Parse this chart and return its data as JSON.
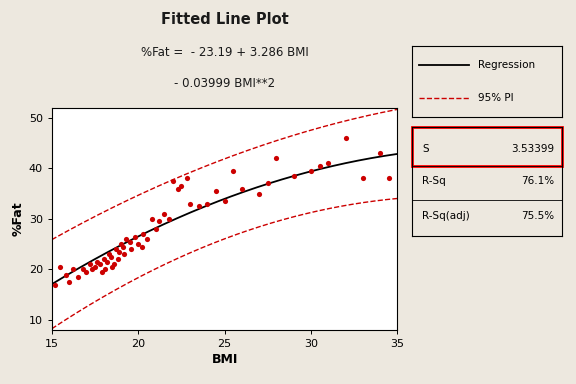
{
  "title": "Fitted Line Plot",
  "subtitle1": "%Fat =  - 23.19 + 3.286 BMI",
  "subtitle2": "- 0.03999 BMI**2",
  "xlabel": "BMI",
  "ylabel": "%Fat",
  "bg_color": "#ede8df",
  "plot_bg_color": "#ffffff",
  "xlim": [
    15,
    35
  ],
  "ylim": [
    8,
    52
  ],
  "xticks": [
    15,
    20,
    25,
    30,
    35
  ],
  "yticks": [
    10,
    20,
    30,
    40,
    50
  ],
  "scatter_color": "#cc0000",
  "regression_color": "#000000",
  "pi_color": "#cc0000",
  "legend_labels": [
    "Regression",
    "95% PI"
  ],
  "stats_labels": [
    "S",
    "R-Sq",
    "R-Sq(adj)"
  ],
  "stats_values": [
    "3.53399",
    "76.1%",
    "75.5%"
  ],
  "coeffs": [
    -23.19,
    3.286,
    -0.03999
  ],
  "s_value": 3.53399,
  "scatter_x": [
    15.2,
    15.5,
    15.8,
    16.0,
    16.2,
    16.5,
    16.8,
    17.0,
    17.2,
    17.3,
    17.5,
    17.6,
    17.8,
    17.9,
    18.0,
    18.1,
    18.2,
    18.3,
    18.4,
    18.5,
    18.6,
    18.7,
    18.8,
    18.9,
    19.0,
    19.1,
    19.2,
    19.3,
    19.5,
    19.6,
    19.8,
    20.0,
    20.2,
    20.3,
    20.5,
    20.8,
    21.0,
    21.2,
    21.5,
    21.8,
    22.0,
    22.3,
    22.5,
    22.8,
    23.0,
    23.5,
    24.0,
    24.5,
    25.0,
    25.5,
    26.0,
    27.0,
    27.5,
    28.0,
    29.0,
    30.0,
    30.5,
    31.0,
    32.0,
    33.0,
    34.0,
    34.5
  ],
  "scatter_y": [
    17.0,
    20.5,
    19.0,
    17.5,
    20.0,
    18.5,
    20.0,
    19.5,
    21.0,
    20.0,
    20.5,
    21.5,
    21.0,
    19.5,
    22.0,
    20.0,
    21.5,
    23.0,
    22.5,
    20.5,
    21.0,
    24.0,
    22.0,
    23.5,
    25.0,
    24.5,
    23.0,
    26.0,
    25.5,
    24.0,
    26.5,
    25.0,
    24.5,
    27.0,
    26.0,
    30.0,
    28.0,
    29.5,
    31.0,
    30.0,
    37.5,
    36.0,
    36.5,
    38.0,
    33.0,
    32.5,
    33.0,
    35.5,
    33.5,
    39.5,
    36.0,
    35.0,
    37.0,
    42.0,
    38.5,
    39.5,
    40.5,
    41.0,
    46.0,
    38.0,
    43.0,
    38.0
  ]
}
